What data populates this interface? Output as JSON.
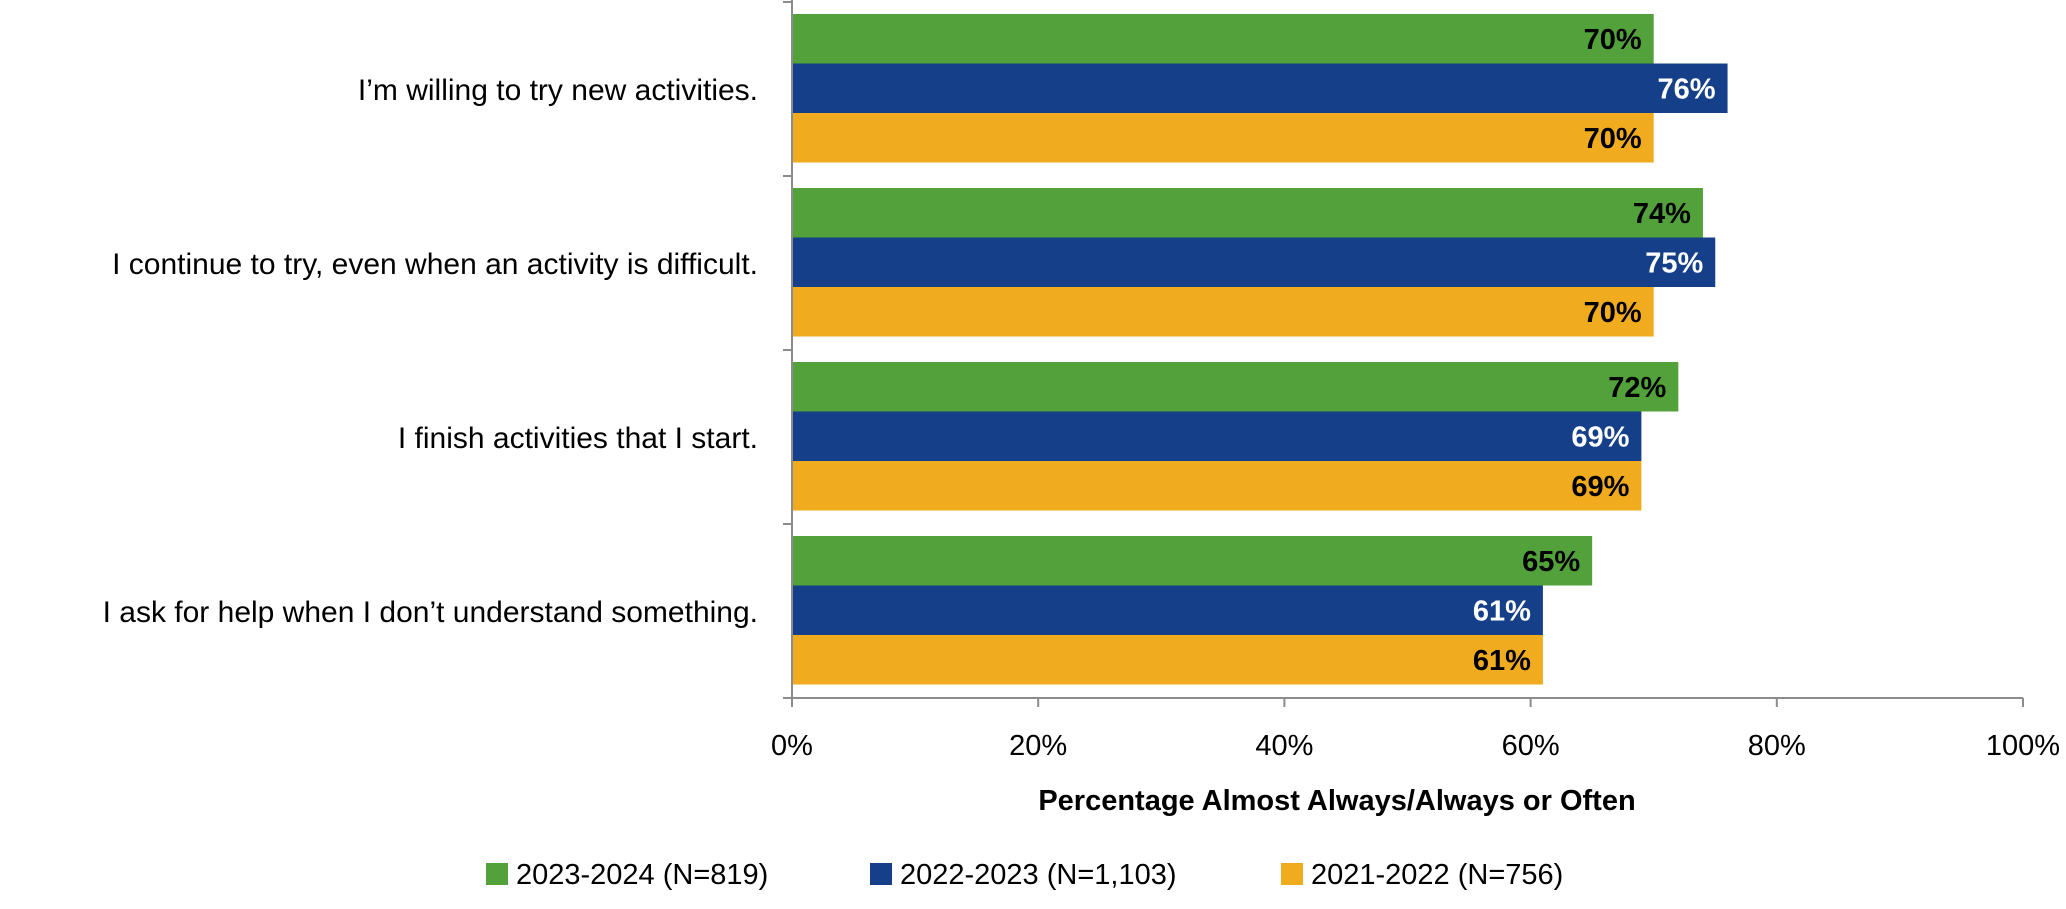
{
  "chart_data": {
    "type": "bar",
    "orientation": "horizontal",
    "title": "",
    "categories": [
      "I’m willing to try new activities.",
      "I continue to try, even when an activity is difficult.",
      "I finish activities that I start.",
      "I ask for help when I don’t understand something."
    ],
    "series": [
      {
        "name": "2023-2024 (N=819)",
        "color": "#52a13a",
        "label_color": "#000000",
        "values": [
          70,
          74,
          72,
          65
        ],
        "labels": [
          "70%",
          "74%",
          "72%",
          "65%"
        ]
      },
      {
        "name": "2022-2023 (N=1,103)",
        "color": "#154089",
        "label_color": "#ffffff",
        "values": [
          76,
          75,
          69,
          61
        ],
        "labels": [
          "76%",
          "75%",
          "69%",
          "61%"
        ]
      },
      {
        "name": "2021-2022 (N=756)",
        "color": "#f0ab1e",
        "label_color": "#000000",
        "values": [
          70,
          70,
          69,
          61
        ],
        "labels": [
          "70%",
          "70%",
          "69%",
          "61%"
        ]
      }
    ],
    "xlabel": "Percentage Almost Always/Always or Often",
    "ylabel": "",
    "xlim": [
      0,
      100
    ],
    "xticks": [
      0,
      20,
      40,
      60,
      80,
      100
    ],
    "xtick_labels": [
      "0%",
      "20%",
      "40%",
      "60%",
      "80%",
      "100%"
    ],
    "grid": false,
    "legend_position": "bottom"
  }
}
